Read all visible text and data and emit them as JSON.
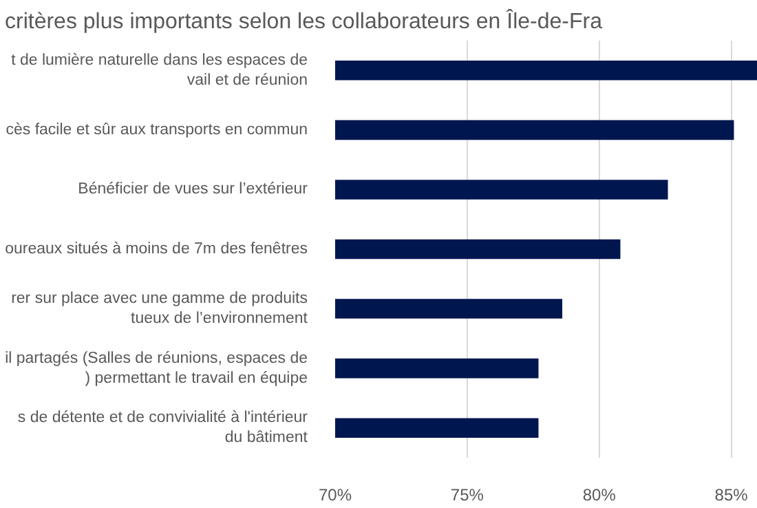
{
  "chart_data": {
    "type": "bar",
    "orientation": "horizontal",
    "title": "critères plus importants selon les collaborateurs en Île-de-Fra",
    "categories": [
      "t de lumière naturelle dans les espaces de\nvail et de réunion",
      "cès facile et sûr aux transports en commun",
      "Bénéficier de vues sur l’extérieur",
      "oureaux situés à moins de 7m des fenêtres",
      "rer sur place avec une gamme de produits\ntueux de l’environnement",
      "il partagés (Salles de réunions, espaces de\n) permettant le travail en équipe",
      "s de détente et de convivialité à l'intérieur\ndu bâtiment"
    ],
    "values": [
      86,
      85.1,
      82.6,
      80.8,
      78.6,
      77.7,
      77.7
    ],
    "color": "#00164f",
    "xlim": [
      70,
      86
    ],
    "xticks": [
      {
        "value": 70,
        "label": "70%"
      },
      {
        "value": 75,
        "label": "75%"
      },
      {
        "value": 80,
        "label": "80%"
      },
      {
        "value": 85,
        "label": "85%"
      }
    ],
    "grid": "x"
  }
}
